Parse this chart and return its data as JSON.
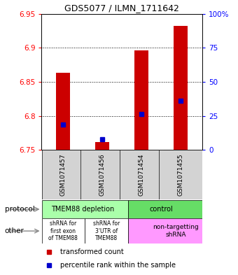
{
  "title": "GDS5077 / ILMN_1711642",
  "samples": [
    "GSM1071457",
    "GSM1071456",
    "GSM1071454",
    "GSM1071455"
  ],
  "bar_values": [
    6.863,
    6.762,
    6.896,
    6.932
  ],
  "bar_bottom": 6.75,
  "percentile_values": [
    6.787,
    6.766,
    6.803,
    6.822
  ],
  "y_min": 6.75,
  "y_max": 6.95,
  "y_ticks": [
    6.75,
    6.8,
    6.85,
    6.9,
    6.95
  ],
  "right_y_ticks": [
    0,
    25,
    50,
    75,
    100
  ],
  "bar_color": "#cc0000",
  "percentile_color": "#0000cc",
  "protocol_labels": [
    "TMEM88 depletion",
    "control"
  ],
  "protocol_colors": [
    "#aaffaa",
    "#66dd66"
  ],
  "other_labels": [
    "shRNA for\nfirst exon\nof TMEM88",
    "shRNA for\n3'UTR of\nTMEM88",
    "non-targetting\nshRNA"
  ],
  "other_colors": [
    "#ffffff",
    "#ffffff",
    "#ff99ff"
  ],
  "legend_items": [
    "transformed count",
    "percentile rank within the sample"
  ],
  "legend_colors": [
    "#cc0000",
    "#0000cc"
  ],
  "sample_bg": "#d3d3d3"
}
